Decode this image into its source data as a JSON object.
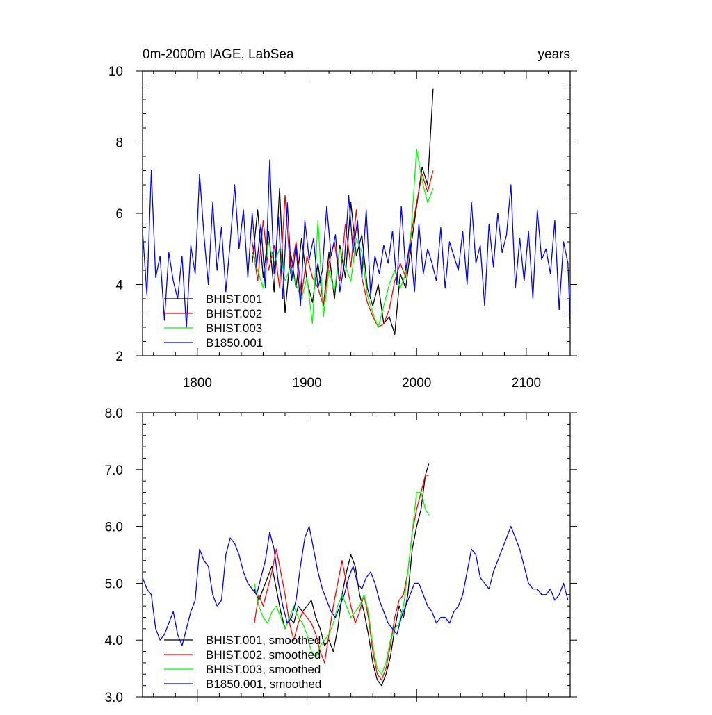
{
  "chart_data": [
    {
      "type": "line",
      "title": "0m-2000m IAGE, LabSea",
      "units": "years",
      "xlim": [
        1750,
        2140
      ],
      "ylim": [
        2,
        10
      ],
      "x_ticks": [
        1800,
        1900,
        2000,
        2100
      ],
      "x_tick_labels": [
        "1800",
        "1900",
        "2000",
        "2100"
      ],
      "y_ticks": [
        2,
        4,
        6,
        8,
        10
      ],
      "y_tick_labels": [
        "2",
        "4",
        "6",
        "8",
        "10"
      ],
      "grid": false,
      "legend_position": "bottom-left",
      "series": [
        {
          "name": "BHIST.001",
          "color": "#000000",
          "x": [
            1850,
            1855,
            1860,
            1865,
            1870,
            1875,
            1880,
            1885,
            1890,
            1895,
            1900,
            1905,
            1910,
            1915,
            1920,
            1925,
            1930,
            1935,
            1940,
            1945,
            1950,
            1955,
            1960,
            1965,
            1970,
            1975,
            1980,
            1985,
            1990,
            1995,
            2000,
            2005,
            2010,
            2015
          ],
          "values": [
            4.6,
            6.1,
            4.2,
            5.5,
            3.8,
            6.7,
            3.2,
            4.9,
            3.9,
            5.3,
            4.1,
            3.5,
            4.6,
            3.4,
            4.9,
            3.6,
            5.1,
            4.2,
            6.3,
            4.8,
            5.4,
            3.9,
            3.4,
            4.0,
            2.9,
            3.1,
            2.6,
            4.3,
            3.9,
            5.1,
            6.2,
            7.3,
            6.8,
            9.5
          ]
        },
        {
          "name": "BHIST.002",
          "color": "#ff0000",
          "x": [
            1850,
            1855,
            1860,
            1865,
            1870,
            1875,
            1880,
            1885,
            1890,
            1895,
            1900,
            1905,
            1910,
            1915,
            1920,
            1925,
            1930,
            1935,
            1940,
            1945,
            1950,
            1955,
            1960,
            1965,
            1970,
            1975,
            1980,
            1985,
            1990,
            1995,
            2000,
            2005,
            2010,
            2015
          ],
          "values": [
            5.2,
            4.1,
            5.8,
            4.4,
            5.1,
            3.9,
            6.5,
            4.3,
            5.2,
            3.7,
            4.8,
            4.2,
            3.9,
            3.4,
            4.6,
            5.2,
            4.1,
            5.7,
            4.5,
            6.1,
            4.2,
            3.5,
            3.1,
            2.8,
            2.9,
            3.3,
            4.1,
            4.6,
            4.2,
            5.4,
            6.3,
            7.1,
            6.6,
            7.2
          ]
        },
        {
          "name": "BHIST.003",
          "color": "#00ff00",
          "x": [
            1850,
            1855,
            1860,
            1865,
            1870,
            1875,
            1880,
            1885,
            1890,
            1895,
            1900,
            1905,
            1910,
            1915,
            1920,
            1925,
            1930,
            1935,
            1940,
            1945,
            1950,
            1955,
            1960,
            1965,
            1970,
            1975,
            1980,
            1985,
            1990,
            1995,
            2000,
            2005,
            2010,
            2015
          ],
          "values": [
            4.9,
            4.4,
            3.9,
            5.2,
            4.6,
            5.0,
            4.1,
            4.5,
            4.0,
            3.6,
            4.2,
            2.9,
            5.8,
            3.1,
            4.4,
            3.8,
            5.0,
            4.5,
            4.1,
            5.3,
            4.9,
            3.7,
            3.2,
            2.8,
            3.4,
            4.0,
            4.4,
            3.9,
            4.3,
            5.5,
            7.8,
            6.9,
            6.3,
            6.7
          ]
        },
        {
          "name": "B1850.001",
          "color": "#0000ff",
          "x": [
            1750,
            1754,
            1758,
            1762,
            1766,
            1770,
            1774,
            1778,
            1782,
            1786,
            1790,
            1794,
            1798,
            1802,
            1806,
            1810,
            1814,
            1818,
            1822,
            1826,
            1830,
            1834,
            1838,
            1842,
            1846,
            1850,
            1854,
            1858,
            1862,
            1866,
            1870,
            1874,
            1878,
            1882,
            1886,
            1890,
            1894,
            1898,
            1902,
            1906,
            1910,
            1914,
            1918,
            1922,
            1926,
            1930,
            1934,
            1938,
            1942,
            1946,
            1950,
            1954,
            1958,
            1962,
            1966,
            1970,
            1974,
            1978,
            1982,
            1986,
            1990,
            1994,
            1998,
            2002,
            2006,
            2010,
            2014,
            2018,
            2022,
            2026,
            2030,
            2034,
            2038,
            2042,
            2046,
            2050,
            2054,
            2058,
            2062,
            2066,
            2070,
            2074,
            2078,
            2082,
            2086,
            2090,
            2094,
            2098,
            2102,
            2106,
            2110,
            2114,
            2118,
            2122,
            2126,
            2130,
            2134,
            2138,
            2140
          ],
          "values": [
            5.5,
            3.7,
            7.2,
            4.2,
            4.8,
            3.0,
            4.9,
            4.1,
            3.6,
            4.8,
            2.8,
            5.1,
            4.3,
            7.1,
            5.4,
            4.0,
            6.3,
            4.4,
            5.6,
            3.8,
            5.2,
            6.8,
            5.0,
            6.1,
            4.2,
            6.0,
            4.5,
            5.7,
            3.9,
            7.5,
            4.3,
            5.9,
            3.6,
            6.3,
            4.1,
            5.1,
            3.4,
            5.8,
            4.7,
            5.3,
            3.9,
            4.4,
            6.2,
            4.8,
            5.4,
            3.8,
            4.6,
            6.5,
            4.9,
            5.8,
            4.2,
            6.1,
            3.7,
            4.8,
            4.3,
            5.1,
            4.6,
            5.5,
            4.0,
            6.2,
            4.4,
            5.2,
            3.8,
            5.7,
            4.3,
            5.0,
            4.6,
            4.1,
            5.6,
            3.9,
            5.2,
            4.8,
            4.4,
            5.5,
            4.0,
            6.3,
            4.6,
            5.1,
            3.4,
            5.7,
            4.5,
            6.0,
            4.9,
            5.4,
            6.8,
            3.9,
            5.3,
            4.1,
            5.5,
            3.6,
            6.1,
            4.7,
            5.0,
            4.3,
            5.8,
            3.3,
            5.2,
            4.6,
            2.9
          ]
        }
      ]
    },
    {
      "type": "line",
      "xlim": [
        1750,
        2140
      ],
      "ylim": [
        3.0,
        8.0
      ],
      "x_ticks": [
        1800,
        1900,
        2000,
        2100
      ],
      "y_ticks": [
        3.0,
        4.0,
        5.0,
        6.0,
        7.0,
        8.0
      ],
      "y_tick_labels": [
        "3.0",
        "4.0",
        "5.0",
        "6.0",
        "7.0",
        "8.0"
      ],
      "grid": false,
      "legend_position": "bottom-left",
      "series": [
        {
          "name": "BHIST.001, smoothed",
          "color": "#000000",
          "x": [
            1852,
            1856,
            1860,
            1864,
            1868,
            1872,
            1876,
            1880,
            1884,
            1888,
            1892,
            1896,
            1900,
            1904,
            1908,
            1912,
            1916,
            1920,
            1924,
            1928,
            1932,
            1936,
            1940,
            1944,
            1948,
            1952,
            1956,
            1960,
            1964,
            1968,
            1972,
            1976,
            1980,
            1984,
            1988,
            1992,
            1996,
            2000,
            2004,
            2008,
            2011
          ],
          "values": [
            4.9,
            4.7,
            4.9,
            5.1,
            5.3,
            4.9,
            4.5,
            4.2,
            4.4,
            4.3,
            4.6,
            4.5,
            4.6,
            4.7,
            4.4,
            4.2,
            3.9,
            4.0,
            3.8,
            4.2,
            4.8,
            5.2,
            5.5,
            5.3,
            4.8,
            4.5,
            4.1,
            3.6,
            3.3,
            3.2,
            3.4,
            3.7,
            4.2,
            4.6,
            4.4,
            4.8,
            5.6,
            6.0,
            6.3,
            6.9,
            7.1
          ]
        },
        {
          "name": "BHIST.002, smoothed",
          "color": "#ff0000",
          "x": [
            1852,
            1856,
            1860,
            1864,
            1868,
            1872,
            1876,
            1880,
            1884,
            1888,
            1892,
            1896,
            1900,
            1904,
            1908,
            1912,
            1916,
            1920,
            1924,
            1928,
            1932,
            1936,
            1940,
            1944,
            1948,
            1952,
            1956,
            1960,
            1964,
            1968,
            1972,
            1976,
            1980,
            1984,
            1988,
            1992,
            1996,
            2000,
            2004,
            2008,
            2011
          ],
          "values": [
            4.3,
            4.8,
            4.6,
            4.9,
            5.2,
            5.6,
            5.2,
            4.8,
            4.3,
            4.0,
            4.3,
            4.5,
            4.4,
            4.3,
            4.1,
            3.8,
            3.6,
            4.1,
            4.6,
            5.0,
            5.4,
            5.0,
            4.6,
            4.3,
            4.5,
            4.8,
            4.4,
            3.8,
            3.4,
            3.3,
            3.5,
            3.9,
            4.4,
            4.7,
            4.8,
            5.2,
            5.9,
            6.3,
            6.6,
            6.9,
            6.9
          ]
        },
        {
          "name": "BHIST.003, smoothed",
          "color": "#00ff00",
          "x": [
            1852,
            1856,
            1860,
            1864,
            1868,
            1872,
            1876,
            1880,
            1884,
            1888,
            1892,
            1896,
            1900,
            1904,
            1908,
            1912,
            1916,
            1920,
            1924,
            1928,
            1932,
            1936,
            1940,
            1944,
            1948,
            1952,
            1956,
            1960,
            1964,
            1968,
            1972,
            1976,
            1980,
            1984,
            1988,
            1992,
            1996,
            2000,
            2004,
            2008,
            2011
          ],
          "values": [
            5.0,
            4.6,
            4.4,
            4.3,
            4.5,
            4.6,
            4.4,
            4.2,
            4.4,
            4.6,
            4.4,
            4.3,
            4.1,
            3.8,
            3.7,
            3.9,
            4.0,
            4.1,
            4.3,
            4.6,
            4.8,
            4.6,
            4.4,
            4.5,
            4.6,
            4.8,
            4.5,
            3.9,
            3.5,
            3.4,
            3.6,
            4.0,
            4.2,
            4.3,
            4.6,
            5.2,
            5.9,
            6.6,
            6.6,
            6.3,
            6.2
          ]
        },
        {
          "name": "B1850.001, smoothed",
          "color": "#0000ff",
          "x": [
            1750,
            1754,
            1758,
            1762,
            1766,
            1770,
            1774,
            1778,
            1782,
            1786,
            1790,
            1794,
            1798,
            1802,
            1806,
            1810,
            1814,
            1818,
            1822,
            1826,
            1830,
            1834,
            1838,
            1842,
            1846,
            1850,
            1854,
            1858,
            1862,
            1866,
            1870,
            1874,
            1878,
            1882,
            1886,
            1890,
            1894,
            1898,
            1902,
            1906,
            1910,
            1914,
            1918,
            1922,
            1926,
            1930,
            1934,
            1938,
            1942,
            1946,
            1950,
            1954,
            1958,
            1962,
            1966,
            1970,
            1974,
            1978,
            1982,
            1986,
            1990,
            1994,
            1998,
            2002,
            2006,
            2010,
            2014,
            2018,
            2022,
            2026,
            2030,
            2034,
            2038,
            2042,
            2046,
            2050,
            2054,
            2058,
            2062,
            2066,
            2070,
            2074,
            2078,
            2082,
            2086,
            2090,
            2094,
            2098,
            2102,
            2106,
            2110,
            2114,
            2118,
            2122,
            2126,
            2130,
            2134,
            2138
          ],
          "values": [
            5.1,
            4.9,
            4.8,
            4.2,
            4.0,
            4.1,
            4.3,
            4.5,
            4.1,
            3.9,
            4.2,
            4.5,
            4.7,
            5.6,
            5.4,
            5.3,
            4.8,
            4.6,
            4.7,
            5.5,
            5.8,
            5.7,
            5.5,
            5.2,
            5.0,
            4.9,
            4.8,
            5.1,
            5.4,
            5.9,
            5.6,
            5.0,
            4.6,
            4.3,
            4.4,
            4.7,
            5.3,
            5.8,
            6.0,
            5.6,
            5.2,
            4.9,
            4.7,
            4.5,
            4.4,
            4.6,
            4.8,
            5.1,
            5.3,
            5.0,
            4.9,
            5.1,
            5.2,
            5.0,
            4.7,
            4.5,
            4.3,
            4.2,
            4.1,
            4.4,
            4.6,
            4.8,
            5.0,
            5.0,
            4.8,
            4.6,
            4.5,
            4.3,
            4.4,
            4.4,
            4.3,
            4.5,
            4.6,
            4.8,
            5.2,
            5.6,
            5.5,
            5.1,
            5.0,
            4.9,
            5.2,
            5.4,
            5.6,
            5.8,
            6.0,
            5.8,
            5.6,
            5.3,
            5.0,
            4.9,
            4.9,
            4.8,
            4.8,
            4.9,
            4.7,
            4.8,
            5.0,
            4.7
          ]
        }
      ]
    }
  ]
}
